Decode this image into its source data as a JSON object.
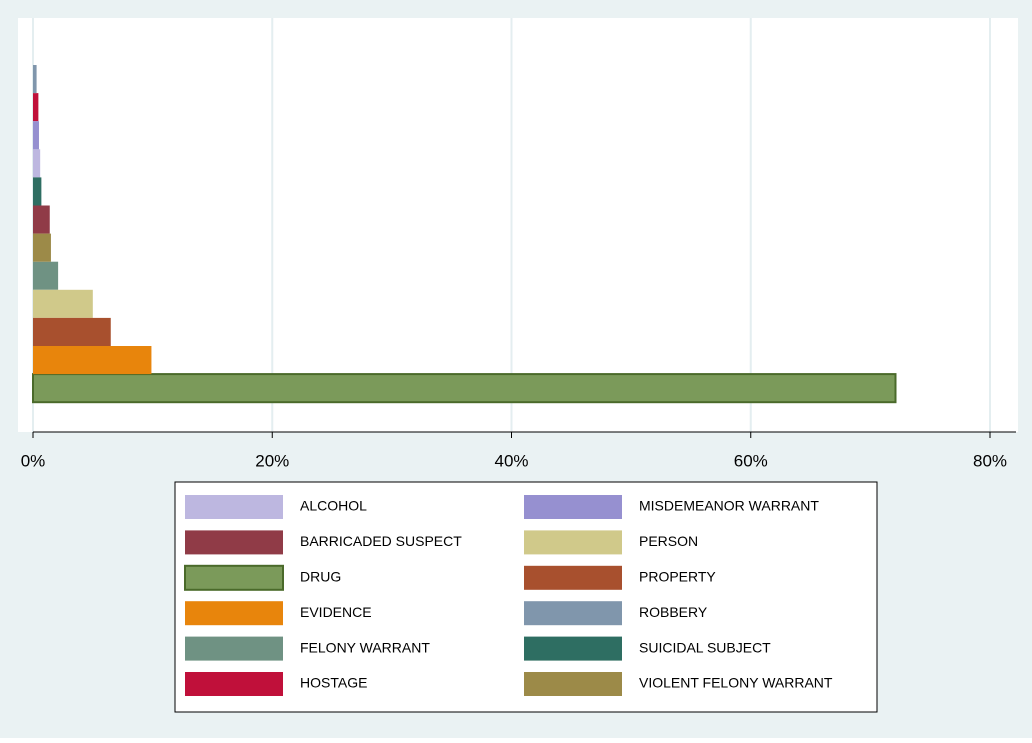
{
  "chart_data": {
    "type": "bar",
    "orientation": "horizontal",
    "xlim": [
      0,
      80
    ],
    "xticks": [
      {
        "value": 0,
        "label": "0%"
      },
      {
        "value": 20,
        "label": "20%"
      },
      {
        "value": 40,
        "label": "40%"
      },
      {
        "value": 60,
        "label": "60%"
      },
      {
        "value": 80,
        "label": "80%"
      }
    ],
    "grid": true,
    "series": [
      {
        "name": "ALCOHOL",
        "color": "#bdb7e0",
        "values": [
          0.6
        ]
      },
      {
        "name": "BARRICADED SUSPECT",
        "color": "#903b47",
        "values": [
          1.4
        ]
      },
      {
        "name": "DRUG",
        "color": "#7b9a5a",
        "values": [
          72.1
        ]
      },
      {
        "name": "EVIDENCE",
        "color": "#e8850c",
        "values": [
          9.9
        ]
      },
      {
        "name": "FELONY WARRANT",
        "color": "#6f9283",
        "values": [
          2.1
        ]
      },
      {
        "name": "HOSTAGE",
        "color": "#c0103a",
        "values": [
          0.45
        ]
      },
      {
        "name": "MISDEMEANOR WARRANT",
        "color": "#9690d0",
        "values": [
          0.5
        ]
      },
      {
        "name": "PERSON",
        "color": "#d0c98a",
        "values": [
          5.0
        ]
      },
      {
        "name": "PROPERTY",
        "color": "#a8502e",
        "values": [
          6.5
        ]
      },
      {
        "name": "ROBBERY",
        "color": "#8096ac",
        "values": [
          0.3
        ]
      },
      {
        "name": "SUICIDAL SUBJECT",
        "color": "#2e6e62",
        "values": [
          0.7
        ]
      },
      {
        "name": "VIOLENT FELONY WARRANT",
        "color": "#9c8a48",
        "values": [
          1.5
        ]
      }
    ]
  }
}
